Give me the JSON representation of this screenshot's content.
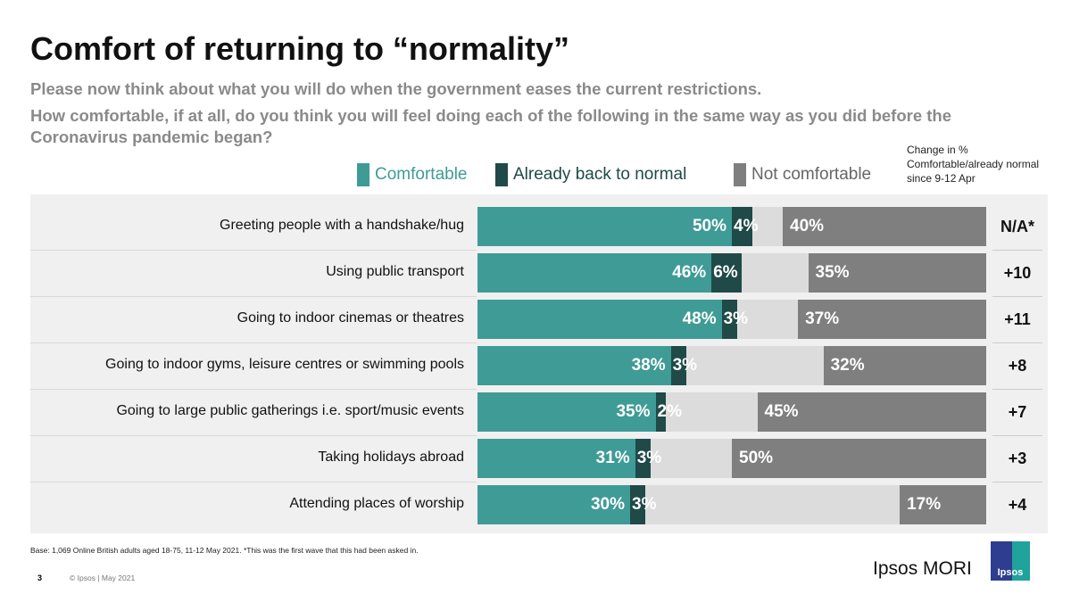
{
  "chart_data": {
    "type": "bar",
    "title": "Comfort of returning to “normality”",
    "subtitle1": "Please now think about what you will do when the government eases the current restrictions.",
    "subtitle2": "How comfortable, if at all, do you think you will feel doing each of the following in the same way as you did before the Coronavirus pandemic began?",
    "legend": [
      {
        "name": "Comfortable",
        "color": "#3f9b96"
      },
      {
        "name": "Already back to normal",
        "color": "#1f4a48"
      },
      {
        "name": "Not comfortable",
        "color": "#7f7f7f"
      }
    ],
    "change_header": "Change in % Comfortable/already normal since 9-12 Apr",
    "gap_color": "#dcdcdc",
    "xlim": [
      0,
      100
    ],
    "categories": [
      "Greeting people with a handshake/hug",
      "Using public transport",
      "Going to indoor cinemas or theatres",
      "Going to indoor gyms, leisure centres or swimming pools",
      "Going to large public gatherings i.e. sport/music events",
      "Taking holidays abroad",
      "Attending places of worship"
    ],
    "series": [
      {
        "name": "Comfortable",
        "values": [
          50,
          46,
          48,
          38,
          35,
          31,
          30
        ]
      },
      {
        "name": "Already back to normal",
        "values": [
          4,
          6,
          3,
          3,
          2,
          3,
          3
        ]
      },
      {
        "name": "Not comfortable",
        "values": [
          40,
          35,
          37,
          32,
          45,
          50,
          17
        ]
      }
    ],
    "labels": {
      "Comfortable": [
        "50%",
        "46%",
        "48%",
        "38%",
        "35%",
        "31%",
        "30%"
      ],
      "Already back to normal": [
        "4%",
        "6%",
        "3%",
        "3%",
        "2%",
        "3%",
        "3%"
      ],
      "Not comfortable": [
        "40%",
        "35%",
        "37%",
        "32%",
        "45%",
        "50%",
        "17%"
      ]
    },
    "change": [
      "N/A*",
      "+10",
      "+11",
      "+8",
      "+7",
      "+3",
      "+4"
    ]
  },
  "footer": {
    "base": "Base: 1,069 Online British adults aged 18-75, 11-12 May 2021. *This was the first wave that this had been asked in.",
    "page": "3",
    "copyright": "© Ipsos | May 2021",
    "brand": "Ipsos MORI",
    "logo": "Ipsos"
  }
}
